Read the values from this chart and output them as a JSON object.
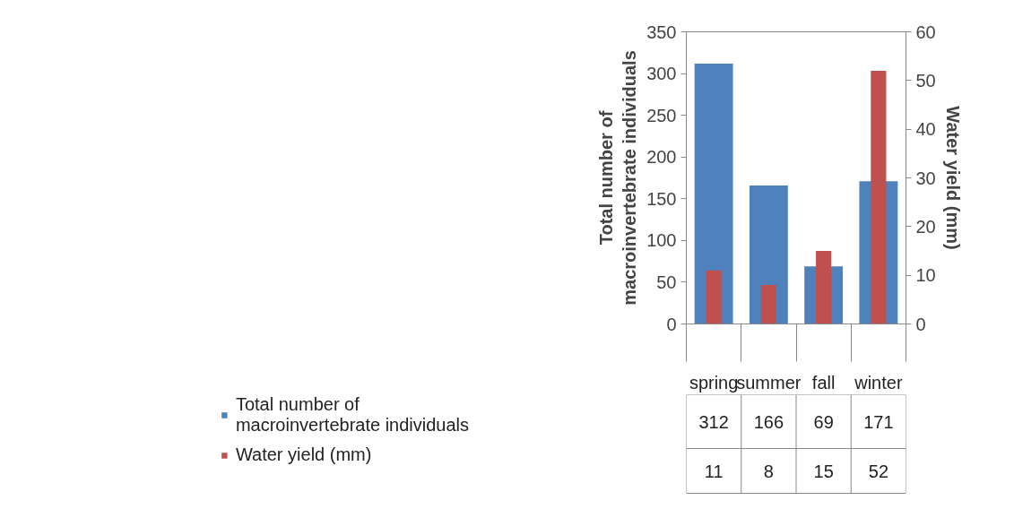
{
  "chart_data": {
    "type": "bar",
    "categories": [
      "spring",
      "summer",
      "fall",
      "winter"
    ],
    "ylabel": "Total number of macroinvertebrate individuals",
    "y2label": "Water yield (mm)",
    "series": [
      {
        "name": "Total number of macroinvertebrate individuals",
        "color": "#4f81bd",
        "values": [
          312,
          166,
          69,
          171
        ]
      },
      {
        "name": "Water yield (mm)",
        "color": "#c0504d",
        "values": [
          11,
          8,
          15,
          52
        ],
        "axis": "y2"
      }
    ],
    "ylim": [
      0,
      350
    ],
    "yticks": [
      0,
      50,
      100,
      150,
      200,
      250,
      300,
      350
    ],
    "y2lim": [
      0,
      60
    ],
    "y2ticks": [
      0,
      10,
      20,
      30,
      40,
      50,
      60
    ],
    "data_labels": true,
    "legend": "bottom",
    "grid": false
  }
}
